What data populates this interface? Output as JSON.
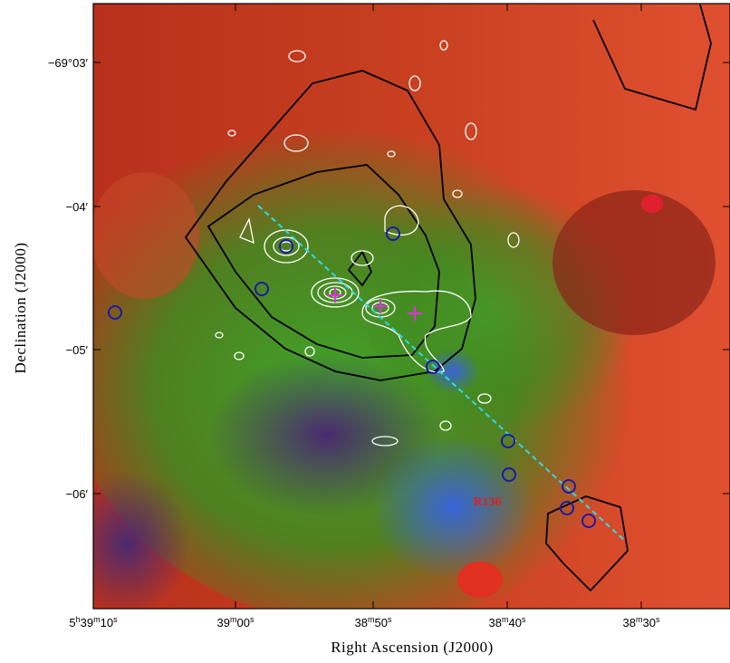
{
  "figure": {
    "x_axis_label": "Right Ascension (J2000)",
    "y_axis_label": "Declination (J2000)",
    "x_ticks": [
      [
        "5",
        "h",
        "39",
        "m",
        "10",
        "s"
      ],
      [
        "39",
        "m",
        "00",
        "s"
      ],
      [
        "38",
        "m",
        "50",
        "s"
      ],
      [
        "38",
        "m",
        "40",
        "s"
      ],
      [
        "38",
        "m",
        "30",
        "s"
      ]
    ],
    "y_ticks": [
      "−69°03′",
      "−04′",
      "−05′",
      "−06′"
    ],
    "annotation": "R136"
  }
}
